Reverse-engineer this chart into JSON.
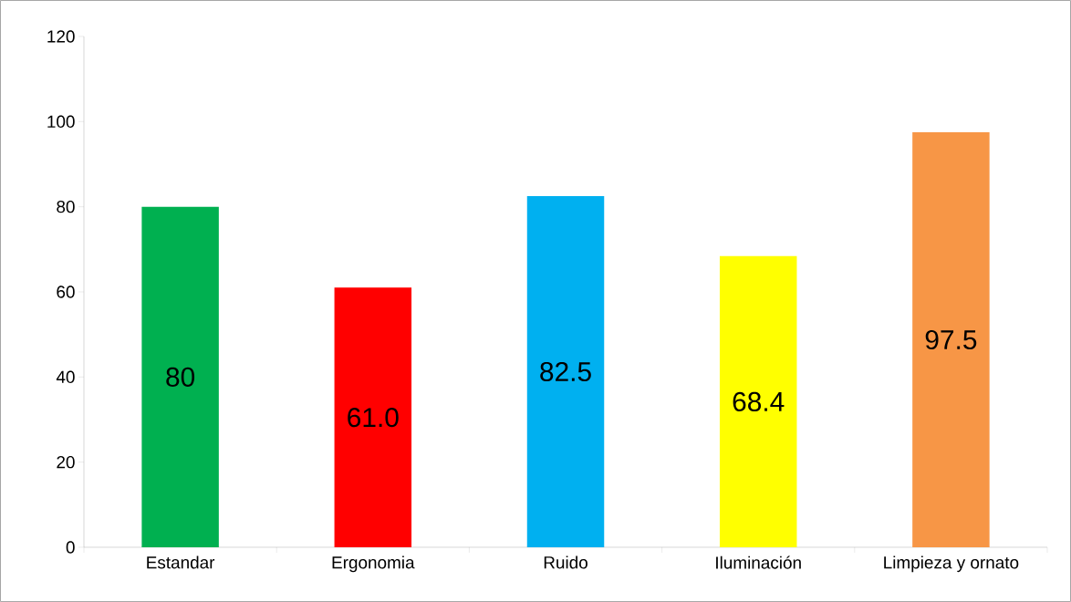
{
  "chart_data": {
    "type": "bar",
    "categories": [
      "Estandar",
      "Ergonomia",
      "Ruido",
      "Iluminación",
      "Limpieza y ornato"
    ],
    "values": [
      80,
      61.0,
      82.5,
      68.4,
      97.5
    ],
    "colors": [
      "#00b050",
      "#ff0000",
      "#00b0f0",
      "#ffff00",
      "#f79646"
    ],
    "value_labels": [
      "80",
      "61.0",
      "82.5",
      "68.4",
      "97.5"
    ],
    "ylim": [
      0,
      120
    ],
    "yticks": [
      0,
      20,
      40,
      60,
      80,
      100,
      120
    ],
    "grid": false
  }
}
